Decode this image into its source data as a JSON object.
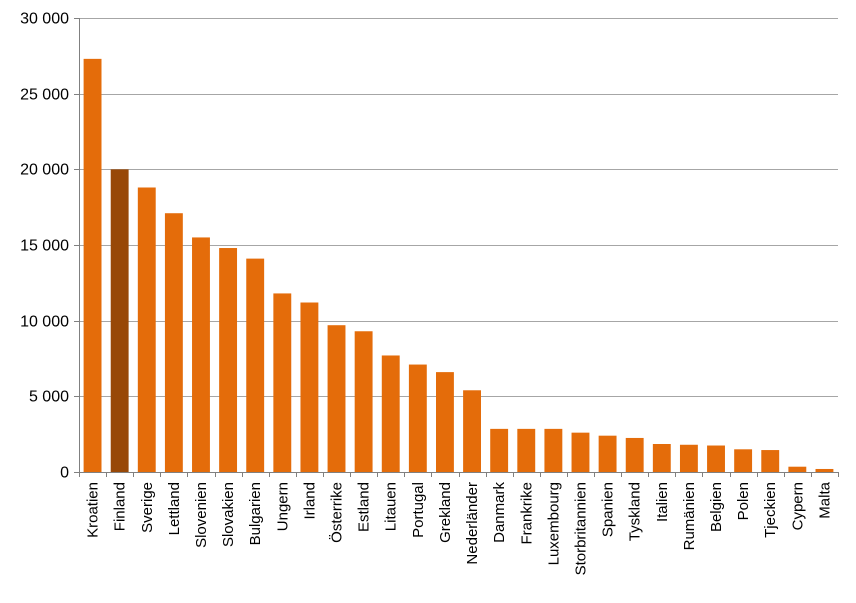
{
  "chart_data": {
    "type": "bar",
    "title": "",
    "xlabel": "",
    "ylabel": "",
    "ylim": [
      0,
      30000
    ],
    "yticks": [
      0,
      5000,
      10000,
      15000,
      20000,
      25000,
      30000
    ],
    "ytick_labels": [
      "0",
      "5 000",
      "10 000",
      "15 000",
      "20 000",
      "25 000",
      "30 000"
    ],
    "grid": true,
    "legend": "none",
    "colors": {
      "bar": "#e46c0a",
      "highlight": "#984807"
    },
    "highlight_category": "Finland",
    "categories": [
      "Kroatien",
      "Finland",
      "Sverige",
      "Lettland",
      "Slovenien",
      "Slovakien",
      "Bulgarien",
      "Ungern",
      "Irland",
      "Österrike",
      "Estland",
      "Litauen",
      "Portugal",
      "Grekland",
      "Nederländer",
      "Danmark",
      "Frankrike",
      "Luxembourg",
      "Storbritannien",
      "Spanien",
      "Tyskland",
      "Italien",
      "Rumänien",
      "Belgien",
      "Polen",
      "Tjeckien",
      "Cypern",
      "Malta"
    ],
    "values": [
      27300,
      20000,
      18800,
      17100,
      15500,
      14800,
      14100,
      11800,
      11200,
      9700,
      9300,
      7700,
      7100,
      6600,
      5400,
      2850,
      2850,
      2850,
      2600,
      2400,
      2250,
      1850,
      1800,
      1750,
      1500,
      1450,
      350,
      200
    ]
  }
}
